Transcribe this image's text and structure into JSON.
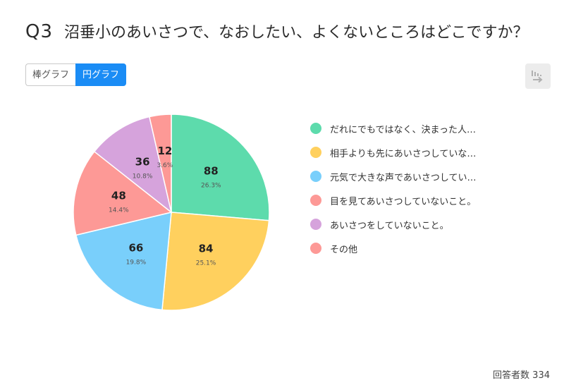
{
  "question": {
    "number": "Q3",
    "text": "沼垂小のあいさつで、なおしたい、よくないところはどこですか？"
  },
  "toggle": {
    "bar_label": "棒グラフ",
    "pie_label": "円グラフ",
    "selected": "円グラフ"
  },
  "export_icon": "export-icon",
  "respondents": {
    "label": "回答者数",
    "count": "334",
    "text": "回答者数 334"
  },
  "chart_data": {
    "type": "pie",
    "total": 334,
    "slices": [
      {
        "label": "だれにでもではなく、決まった人…",
        "value": 88,
        "percent": "26.3%",
        "color": "#5ddbac"
      },
      {
        "label": "相手よりも先にあいさつしていな…",
        "value": 84,
        "percent": "25.1%",
        "color": "#ffd05e"
      },
      {
        "label": "元気で大きな声であいさつしてい…",
        "value": 66,
        "percent": "19.8%",
        "color": "#79cffb"
      },
      {
        "label": "目を見てあいさつしていないこと。",
        "value": 48,
        "percent": "14.4%",
        "color": "#fd9996"
      },
      {
        "label": "あいさつをしていないこと。",
        "value": 36,
        "percent": "10.8%",
        "color": "#d6a3dc"
      },
      {
        "label": "その他",
        "value": 12,
        "percent": "3.6%",
        "color": "#fd9996"
      }
    ]
  }
}
